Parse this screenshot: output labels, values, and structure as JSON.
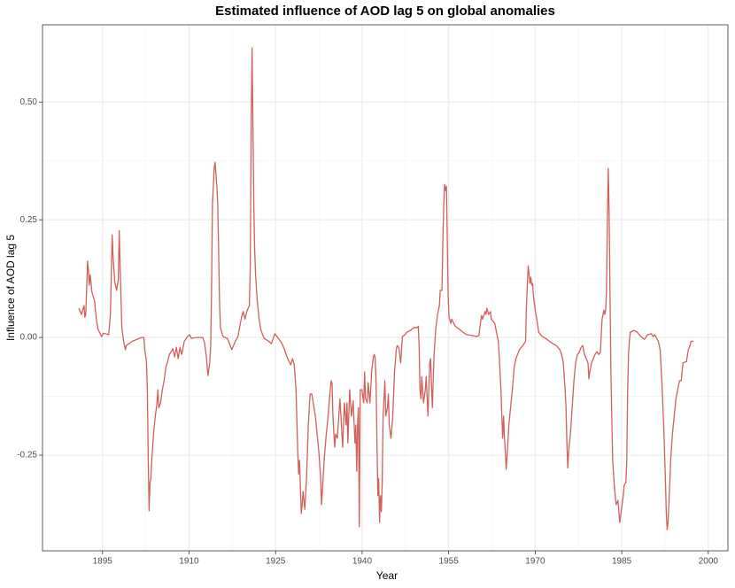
{
  "chart_data": {
    "type": "line",
    "title": "Estimated influence of AOD lag 5 on global anomalies",
    "x_label": "Year",
    "y_label": "Influence of AOD lag 5",
    "color": "#d2605a",
    "grid": true,
    "xlim": [
      1884.6,
      2003.4
    ],
    "ylim": [
      -0.453,
      0.664
    ],
    "xticks": [
      1895,
      1910,
      1925,
      1940,
      1955,
      1970,
      1985,
      2000
    ],
    "yticks": [
      -0.25,
      {
        "value": 0,
        "label": "0.00"
      },
      0.25,
      {
        "value": 0.5,
        "label": "0.50"
      }
    ],
    "x": [
      1890.88,
      1891.34,
      1891.8,
      1891.95,
      1892.1,
      1892.41,
      1892.56,
      1892.71,
      1892.87,
      1893.17,
      1893.63,
      1893.93,
      1894.24,
      1894.85,
      1895.15,
      1896.07,
      1896.37,
      1896.68,
      1896.83,
      1897.13,
      1897.44,
      1897.74,
      1897.9,
      1898.05,
      1898.35,
      1898.66,
      1898.96,
      1899.12,
      1900.18,
      1901.71,
      1902.17,
      1902.32,
      1902.62,
      1902.77,
      1902.93,
      1903.08,
      1903.23,
      1903.38,
      1903.54,
      1903.84,
      1904.15,
      1904.45,
      1904.6,
      1904.76,
      1905.06,
      1905.37,
      1905.67,
      1905.98,
      1906.28,
      1906.59,
      1907.2,
      1907.5,
      1907.8,
      1908.11,
      1908.42,
      1908.72,
      1909.18,
      1909.63,
      1910.09,
      1910.4,
      1911.16,
      1912.38,
      1912.68,
      1912.99,
      1913.29,
      1913.6,
      1913.75,
      1913.9,
      1914.06,
      1914.36,
      1914.51,
      1914.82,
      1914.97,
      1915.12,
      1915.28,
      1915.43,
      1915.89,
      1916.65,
      1917.26,
      1917.41,
      1918.02,
      1918.48,
      1919.09,
      1919.39,
      1919.7,
      1920.0,
      1920.46,
      1920.61,
      1920.76,
      1920.92,
      1921.07,
      1921.22,
      1921.37,
      1921.53,
      1921.83,
      1922.14,
      1922.44,
      1922.75,
      1923.05,
      1923.81,
      1924.27,
      1924.88,
      1925.49,
      1926.1,
      1926.56,
      1927.01,
      1927.62,
      1927.93,
      1928.23,
      1928.54,
      1928.84,
      1929.0,
      1929.15,
      1929.45,
      1929.61,
      1929.76,
      1930.06,
      1930.37,
      1930.67,
      1930.98,
      1931.28,
      1931.89,
      1932.5,
      1932.81,
      1932.96,
      1933.11,
      1933.42,
      1933.72,
      1934.03,
      1934.33,
      1934.63,
      1934.79,
      1934.94,
      1935.24,
      1935.4,
      1935.7,
      1936.16,
      1936.62,
      1936.92,
      1937.23,
      1937.38,
      1937.53,
      1937.84,
      1938.14,
      1938.45,
      1938.75,
      1938.9,
      1939.06,
      1939.21,
      1939.36,
      1939.51,
      1939.67,
      1939.97,
      1940.28,
      1940.43,
      1940.59,
      1940.89,
      1941.04,
      1941.35,
      1941.65,
      1941.96,
      1942.11,
      1942.26,
      1942.41,
      1942.57,
      1942.72,
      1942.87,
      1943.02,
      1943.17,
      1943.33,
      1943.48,
      1943.63,
      1943.94,
      1944.09,
      1944.39,
      1944.55,
      1944.7,
      1945.0,
      1945.31,
      1945.61,
      1945.92,
      1946.07,
      1946.37,
      1946.68,
      1946.98,
      1947.44,
      1947.75,
      1948.36,
      1948.97,
      1949.58,
      1949.73,
      1949.88,
      1950.03,
      1950.19,
      1950.34,
      1950.64,
      1950.95,
      1951.1,
      1951.41,
      1951.71,
      1951.86,
      1952.17,
      1952.47,
      1952.78,
      1953.08,
      1953.39,
      1953.54,
      1953.84,
      1954.0,
      1954.15,
      1954.3,
      1954.45,
      1954.61,
      1954.76,
      1954.91,
      1955.06,
      1955.37,
      1955.52,
      1956.13,
      1956.89,
      1957.5,
      1958.11,
      1959.18,
      1959.79,
      1960.25,
      1960.4,
      1960.7,
      1960.86,
      1961.31,
      1961.46,
      1961.62,
      1961.92,
      1962.23,
      1962.38,
      1962.99,
      1963.29,
      1963.6,
      1963.75,
      1963.9,
      1964.06,
      1964.21,
      1964.36,
      1964.51,
      1964.67,
      1964.82,
      1964.97,
      1965.12,
      1965.43,
      1965.73,
      1966.04,
      1966.35,
      1966.65,
      1967.26,
      1967.87,
      1968.33,
      1968.48,
      1968.78,
      1968.94,
      1969.09,
      1969.24,
      1969.39,
      1969.55,
      1969.7,
      1970.0,
      1970.31,
      1970.61,
      1971.22,
      1971.83,
      1972.44,
      1973.05,
      1973.66,
      1974.27,
      1974.57,
      1974.88,
      1975.18,
      1975.34,
      1975.49,
      1975.64,
      1975.79,
      1976.1,
      1976.4,
      1976.71,
      1977.01,
      1977.32,
      1977.62,
      1977.93,
      1978.23,
      1978.54,
      1978.85,
      1979.15,
      1979.3,
      1979.46,
      1979.76,
      1980.07,
      1980.37,
      1980.68,
      1980.98,
      1981.29,
      1981.59,
      1981.9,
      1982.05,
      1982.2,
      1982.35,
      1982.51,
      1982.66,
      1982.81,
      1982.96,
      1983.12,
      1983.27,
      1983.42,
      1983.73,
      1984.03,
      1984.34,
      1984.65,
      1984.95,
      1985.26,
      1985.41,
      1985.72,
      1985.87,
      1986.02,
      1986.17,
      1986.32,
      1986.48,
      1987.09,
      1987.7,
      1988.31,
      1988.92,
      1989.51,
      1990.12,
      1990.43,
      1990.73,
      1991.04,
      1991.34,
      1991.65,
      1991.95,
      1992.26,
      1992.56,
      1992.72,
      1992.87,
      1993.02,
      1993.17,
      1993.48,
      1993.78,
      1994.09,
      1994.39,
      1994.7,
      1995.0,
      1995.31,
      1995.61,
      1996.22,
      1996.53,
      1996.84,
      1996.99,
      1997.45
    ],
    "values": [
      0.062,
      0.049,
      0.068,
      0.043,
      0.049,
      0.162,
      0.143,
      0.111,
      0.133,
      0.096,
      0.077,
      0.039,
      0.017,
      0.002,
      0.009,
      0.006,
      0.049,
      0.218,
      0.171,
      0.118,
      0.1,
      0.124,
      0.227,
      0.152,
      0.021,
      -0.008,
      -0.026,
      -0.017,
      -0.008,
      0.0,
      0.0,
      -0.026,
      -0.051,
      -0.111,
      -0.261,
      -0.368,
      -0.308,
      -0.299,
      -0.261,
      -0.205,
      -0.167,
      -0.139,
      -0.111,
      -0.149,
      -0.139,
      -0.111,
      -0.092,
      -0.064,
      -0.051,
      -0.036,
      -0.024,
      -0.041,
      -0.021,
      -0.045,
      -0.021,
      -0.036,
      -0.008,
      0.0,
      0.006,
      -0.002,
      0.0,
      0.0,
      -0.011,
      -0.04,
      -0.081,
      -0.051,
      -0.017,
      0.096,
      0.284,
      0.359,
      0.372,
      0.321,
      0.284,
      0.19,
      0.077,
      0.021,
      0.002,
      -0.002,
      -0.021,
      -0.026,
      -0.008,
      0.002,
      0.043,
      0.055,
      0.039,
      0.055,
      0.068,
      0.152,
      0.434,
      0.615,
      0.453,
      0.284,
      0.19,
      0.133,
      0.077,
      0.039,
      0.017,
      0.006,
      -0.002,
      -0.008,
      -0.013,
      0.008,
      -0.002,
      -0.013,
      -0.026,
      -0.043,
      -0.058,
      -0.045,
      -0.058,
      -0.111,
      -0.243,
      -0.29,
      -0.261,
      -0.374,
      -0.355,
      -0.327,
      -0.365,
      -0.299,
      -0.186,
      -0.12,
      -0.12,
      -0.167,
      -0.243,
      -0.299,
      -0.355,
      -0.327,
      -0.261,
      -0.214,
      -0.177,
      -0.13,
      -0.092,
      -0.098,
      -0.167,
      -0.233,
      -0.205,
      -0.214,
      -0.13,
      -0.233,
      -0.139,
      -0.186,
      -0.139,
      -0.224,
      -0.111,
      -0.167,
      -0.134,
      -0.224,
      -0.186,
      -0.284,
      -0.186,
      -0.149,
      -0.402,
      -0.111,
      -0.111,
      -0.139,
      -0.073,
      -0.13,
      -0.139,
      -0.096,
      -0.139,
      -0.073,
      -0.04,
      -0.036,
      -0.045,
      -0.092,
      -0.224,
      -0.336,
      -0.299,
      -0.393,
      -0.336,
      -0.37,
      -0.308,
      -0.167,
      -0.092,
      -0.167,
      -0.149,
      -0.12,
      -0.186,
      -0.214,
      -0.167,
      -0.073,
      -0.026,
      -0.017,
      -0.021,
      -0.054,
      0.002,
      0.006,
      0.011,
      0.015,
      0.021,
      0.021,
      0.024,
      -0.017,
      -0.111,
      -0.13,
      -0.083,
      -0.139,
      -0.111,
      -0.083,
      -0.167,
      -0.054,
      -0.045,
      -0.149,
      -0.036,
      0.021,
      0.049,
      0.068,
      0.1,
      0.1,
      0.209,
      0.284,
      0.325,
      0.312,
      0.321,
      0.209,
      0.087,
      0.043,
      0.03,
      0.039,
      0.024,
      0.017,
      0.011,
      0.006,
      0.004,
      0.002,
      0.004,
      0.021,
      0.047,
      0.039,
      0.055,
      0.049,
      0.062,
      0.049,
      0.055,
      0.039,
      0.03,
      0.011,
      -0.008,
      -0.036,
      -0.073,
      -0.111,
      -0.167,
      -0.214,
      -0.167,
      -0.214,
      -0.243,
      -0.28,
      -0.252,
      -0.186,
      -0.149,
      -0.111,
      -0.064,
      -0.045,
      -0.026,
      -0.017,
      -0.008,
      0.068,
      0.152,
      0.133,
      0.115,
      0.128,
      0.111,
      0.115,
      0.087,
      0.058,
      0.036,
      0.011,
      0.002,
      -0.002,
      -0.008,
      -0.013,
      -0.017,
      -0.026,
      -0.036,
      -0.054,
      -0.111,
      -0.149,
      -0.224,
      -0.277,
      -0.243,
      -0.205,
      -0.149,
      -0.092,
      -0.054,
      -0.036,
      -0.032,
      -0.021,
      -0.017,
      -0.036,
      -0.045,
      -0.054,
      -0.088,
      -0.073,
      -0.054,
      -0.045,
      -0.036,
      -0.03,
      -0.036,
      -0.032,
      0.039,
      0.058,
      0.049,
      0.058,
      0.096,
      0.246,
      0.359,
      0.265,
      0.096,
      -0.073,
      -0.167,
      -0.261,
      -0.318,
      -0.355,
      -0.346,
      -0.393,
      -0.365,
      -0.336,
      -0.314,
      -0.308,
      -0.261,
      -0.111,
      -0.036,
      -0.008,
      0.011,
      0.015,
      0.011,
      0.002,
      -0.004,
      0.006,
      0.008,
      0.002,
      0.006,
      -0.002,
      -0.008,
      -0.026,
      -0.092,
      -0.186,
      -0.299,
      -0.374,
      -0.408,
      -0.393,
      -0.355,
      -0.261,
      -0.205,
      -0.167,
      -0.13,
      -0.111,
      -0.092,
      -0.092,
      -0.054,
      -0.051,
      -0.026,
      -0.017,
      -0.008,
      -0.008
    ]
  }
}
